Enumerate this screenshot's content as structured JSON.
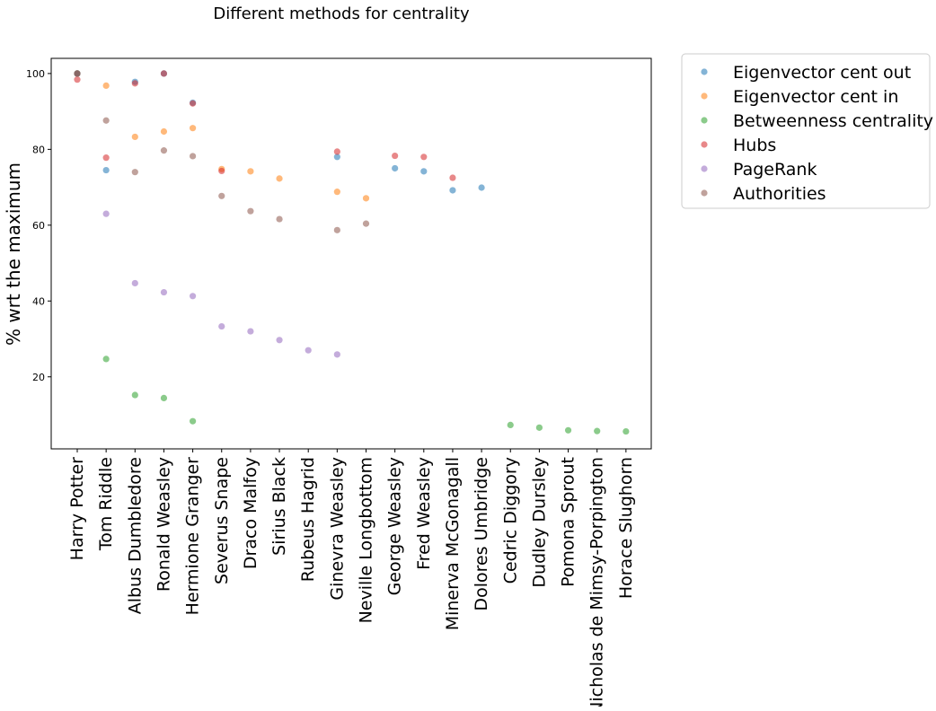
{
  "chart_data": {
    "type": "scatter",
    "title": "Different methods for centrality",
    "xlabel": "",
    "ylabel": "% wrt the maximum",
    "ylim": [
      1,
      104
    ],
    "yticks": [
      20,
      40,
      60,
      80,
      100
    ],
    "grid": false,
    "legend_position": "outside-right",
    "categories": [
      "Harry Potter",
      "Tom Riddle",
      "Albus Dumbledore",
      "Ronald Weasley",
      "Hermione Granger",
      "Severus Snape",
      "Draco Malfoy",
      "Sirius Black",
      "Rubeus Hagrid",
      "Ginevra Weasley",
      "Neville Longbottom",
      "George Weasley",
      "Fred Weasley",
      "Minerva McGonagall",
      "Dolores Umbridge",
      "Cedric Diggory",
      "Dudley Dursley",
      "Pomona Sprout",
      "Nicholas de Mimsy-Porpington",
      "Horace Slughorn"
    ],
    "series": [
      {
        "name": "Eigenvector cent out",
        "color": "#1f77b4",
        "points": [
          {
            "x": "Harry Potter",
            "y": 100
          },
          {
            "x": "Tom Riddle",
            "y": 74.5
          },
          {
            "x": "Albus Dumbledore",
            "y": 97.8
          },
          {
            "x": "Ronald Weasley",
            "y": 100
          },
          {
            "x": "Hermione Granger",
            "y": 92.3
          },
          {
            "x": "Ginevra Weasley",
            "y": 78.0
          },
          {
            "x": "George Weasley",
            "y": 75.0
          },
          {
            "x": "Fred Weasley",
            "y": 74.2
          },
          {
            "x": "Minerva McGonagall",
            "y": 69.2
          },
          {
            "x": "Dolores Umbridge",
            "y": 69.9
          }
        ]
      },
      {
        "name": "Eigenvector cent in",
        "color": "#ff7f0e",
        "points": [
          {
            "x": "Harry Potter",
            "y": 100
          },
          {
            "x": "Tom Riddle",
            "y": 96.8
          },
          {
            "x": "Albus Dumbledore",
            "y": 83.3
          },
          {
            "x": "Ronald Weasley",
            "y": 84.7
          },
          {
            "x": "Hermione Granger",
            "y": 85.6
          },
          {
            "x": "Severus Snape",
            "y": 74.8
          },
          {
            "x": "Draco Malfoy",
            "y": 74.2
          },
          {
            "x": "Sirius Black",
            "y": 72.3
          },
          {
            "x": "Ginevra Weasley",
            "y": 68.8
          },
          {
            "x": "Neville Longbottom",
            "y": 67.1
          }
        ]
      },
      {
        "name": "Betweenness centrality",
        "color": "#2ca02c",
        "points": [
          {
            "x": "Harry Potter",
            "y": 100
          },
          {
            "x": "Tom Riddle",
            "y": 24.7
          },
          {
            "x": "Albus Dumbledore",
            "y": 15.2
          },
          {
            "x": "Ronald Weasley",
            "y": 14.4
          },
          {
            "x": "Hermione Granger",
            "y": 8.3
          },
          {
            "x": "Cedric Diggory",
            "y": 7.3
          },
          {
            "x": "Dudley Dursley",
            "y": 6.6
          },
          {
            "x": "Pomona Sprout",
            "y": 5.9
          },
          {
            "x": "Nicholas de Mimsy-Porpington",
            "y": 5.7
          },
          {
            "x": "Horace Slughorn",
            "y": 5.6
          }
        ]
      },
      {
        "name": "Hubs",
        "color": "#d62728",
        "points": [
          {
            "x": "Harry Potter",
            "y": 98.4
          },
          {
            "x": "Tom Riddle",
            "y": 77.8
          },
          {
            "x": "Albus Dumbledore",
            "y": 97.4
          },
          {
            "x": "Ronald Weasley",
            "y": 100
          },
          {
            "x": "Hermione Granger",
            "y": 92.1
          },
          {
            "x": "Severus Snape",
            "y": 74.3
          },
          {
            "x": "Ginevra Weasley",
            "y": 79.4
          },
          {
            "x": "George Weasley",
            "y": 78.3
          },
          {
            "x": "Fred Weasley",
            "y": 78.0
          },
          {
            "x": "Minerva McGonagall",
            "y": 72.5
          }
        ]
      },
      {
        "name": "PageRank",
        "color": "#9467bd",
        "points": [
          {
            "x": "Harry Potter",
            "y": 100
          },
          {
            "x": "Tom Riddle",
            "y": 63.0
          },
          {
            "x": "Albus Dumbledore",
            "y": 44.7
          },
          {
            "x": "Ronald Weasley",
            "y": 42.3
          },
          {
            "x": "Hermione Granger",
            "y": 41.3
          },
          {
            "x": "Severus Snape",
            "y": 33.3
          },
          {
            "x": "Draco Malfoy",
            "y": 32.0
          },
          {
            "x": "Sirius Black",
            "y": 29.7
          },
          {
            "x": "Rubeus Hagrid",
            "y": 27.0
          },
          {
            "x": "Ginevra Weasley",
            "y": 25.9
          }
        ]
      },
      {
        "name": "Authorities",
        "color": "#8c564b",
        "points": [
          {
            "x": "Harry Potter",
            "y": 100
          },
          {
            "x": "Tom Riddle",
            "y": 87.6
          },
          {
            "x": "Albus Dumbledore",
            "y": 74.0
          },
          {
            "x": "Ronald Weasley",
            "y": 79.7
          },
          {
            "x": "Hermione Granger",
            "y": 78.2
          },
          {
            "x": "Severus Snape",
            "y": 67.7
          },
          {
            "x": "Draco Malfoy",
            "y": 63.7
          },
          {
            "x": "Sirius Black",
            "y": 61.6
          },
          {
            "x": "Ginevra Weasley",
            "y": 58.7
          },
          {
            "x": "Neville Longbottom",
            "y": 60.4
          }
        ]
      }
    ]
  }
}
